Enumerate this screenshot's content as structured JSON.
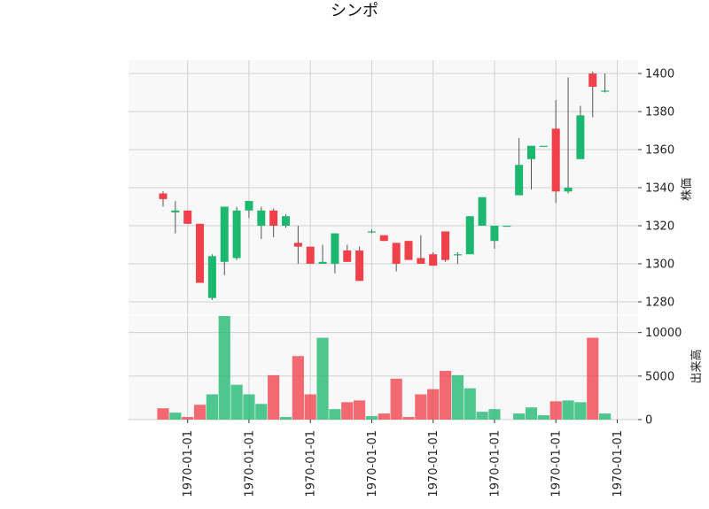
{
  "title": "シンポ",
  "chart_data": [
    {
      "type": "candlestick",
      "ylabel": "株価",
      "ylim": [
        1273,
        1407
      ],
      "yticks": [
        1280,
        1300,
        1320,
        1340,
        1360,
        1380,
        1400
      ],
      "xtick_labels": [
        "1970-01-01",
        "1970-01-01",
        "1970-01-01",
        "1970-01-01",
        "1970-01-01",
        "1970-01-01",
        "1970-01-01",
        "1970-01-01"
      ],
      "xtick_positions": [
        2,
        7,
        12,
        17,
        22,
        27,
        32,
        37
      ],
      "grid": true,
      "colors": {
        "up": "#1db86f",
        "down": "#f0404a",
        "wick": "#555555",
        "background": "#f8f8f8",
        "grid": "#d0d0d0"
      },
      "candles": [
        {
          "o": 1337,
          "h": 1338,
          "l": 1330,
          "c": 1334
        },
        {
          "o": 1327,
          "h": 1333,
          "l": 1316,
          "c": 1328
        },
        {
          "o": 1328,
          "h": 1328,
          "l": 1321,
          "c": 1321
        },
        {
          "o": 1321,
          "h": 1321,
          "l": 1290,
          "c": 1290
        },
        {
          "o": 1282,
          "h": 1305,
          "l": 1281,
          "c": 1304
        },
        {
          "o": 1301,
          "h": 1330,
          "l": 1294,
          "c": 1330
        },
        {
          "o": 1303,
          "h": 1330,
          "l": 1302,
          "c": 1328
        },
        {
          "o": 1328,
          "h": 1333,
          "l": 1324,
          "c": 1333
        },
        {
          "o": 1320,
          "h": 1330,
          "l": 1313,
          "c": 1328
        },
        {
          "o": 1328,
          "h": 1329,
          "l": 1314,
          "c": 1320
        },
        {
          "o": 1320,
          "h": 1326,
          "l": 1319,
          "c": 1325
        },
        {
          "o": 1311,
          "h": 1320,
          "l": 1300,
          "c": 1309
        },
        {
          "o": 1309,
          "h": 1309,
          "l": 1300,
          "c": 1300
        },
        {
          "o": 1300,
          "h": 1310,
          "l": 1300,
          "c": 1301
        },
        {
          "o": 1300,
          "h": 1316,
          "l": 1295,
          "c": 1316
        },
        {
          "o": 1307,
          "h": 1310,
          "l": 1301,
          "c": 1301
        },
        {
          "o": 1307,
          "h": 1309,
          "l": 1291,
          "c": 1291
        },
        {
          "o": 1317,
          "h": 1318,
          "l": 1316,
          "c": 1317
        },
        {
          "o": 1315,
          "h": 1315,
          "l": 1312,
          "c": 1312
        },
        {
          "o": 1311,
          "h": 1311,
          "l": 1296,
          "c": 1300
        },
        {
          "o": 1312,
          "h": 1312,
          "l": 1302,
          "c": 1302
        },
        {
          "o": 1303,
          "h": 1315,
          "l": 1300,
          "c": 1300
        },
        {
          "o": 1305,
          "h": 1306,
          "l": 1299,
          "c": 1299
        },
        {
          "o": 1317,
          "h": 1317,
          "l": 1301,
          "c": 1302
        },
        {
          "o": 1305,
          "h": 1306,
          "l": 1300,
          "c": 1305
        },
        {
          "o": 1305,
          "h": 1325,
          "l": 1305,
          "c": 1325
        },
        {
          "o": 1320,
          "h": 1335,
          "l": 1320,
          "c": 1335
        },
        {
          "o": 1312,
          "h": 1320,
          "l": 1308,
          "c": 1320
        },
        {
          "o": 1320,
          "h": 1320,
          "l": 1320,
          "c": 1320
        },
        {
          "o": 1336,
          "h": 1366,
          "l": 1336,
          "c": 1352
        },
        {
          "o": 1355,
          "h": 1362,
          "l": 1339,
          "c": 1362
        },
        {
          "o": 1362,
          "h": 1362,
          "l": 1362,
          "c": 1362
        },
        {
          "o": 1371,
          "h": 1386,
          "l": 1332,
          "c": 1338
        },
        {
          "o": 1338,
          "h": 1398,
          "l": 1337,
          "c": 1340
        },
        {
          "o": 1355,
          "h": 1383,
          "l": 1355,
          "c": 1378
        },
        {
          "o": 1400,
          "h": 1401,
          "l": 1377,
          "c": 1393
        },
        {
          "o": 1391,
          "h": 1400,
          "l": 1390,
          "c": 1391
        }
      ]
    },
    {
      "type": "bar",
      "ylabel": "出来高",
      "ylim": [
        0,
        12000
      ],
      "yticks": [
        0,
        5000,
        10000
      ],
      "values": [
        1300,
        800,
        300,
        1700,
        2900,
        11900,
        4000,
        2900,
        1800,
        5100,
        300,
        7300,
        2900,
        9400,
        1200,
        2000,
        2200,
        400,
        700,
        4700,
        300,
        2900,
        3500,
        5600,
        5100,
        3600,
        900,
        1200,
        0,
        700,
        1400,
        500,
        2100,
        2200,
        2000,
        9400,
        700
      ]
    }
  ]
}
